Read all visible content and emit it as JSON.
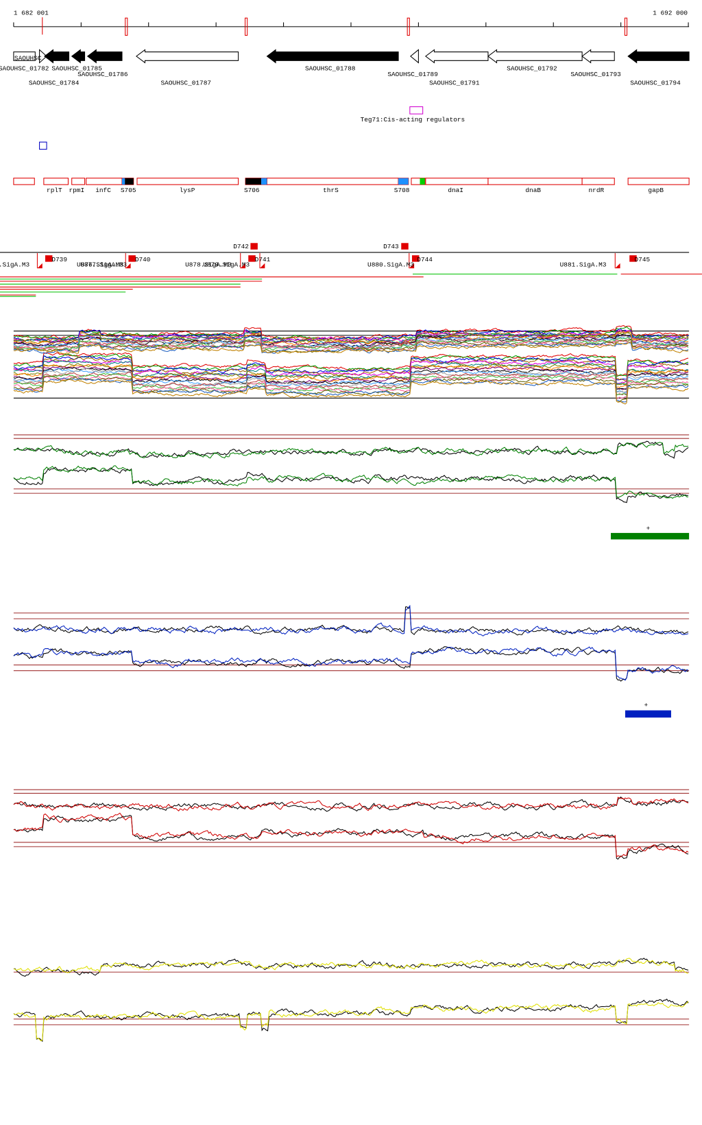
{
  "ruler": {
    "start": "1 682 001",
    "end": "1 692 000"
  },
  "genes": [
    "SAOUHSC",
    "SAOUHSC_01782",
    "SAOUHSC_01785",
    "SAOUHSC_01786",
    "SAOUHSC_01784",
    "SAOUHSC_01787",
    "SAOUHSC_01788",
    "SAOUHSC_01789",
    "SAOUHSC_01791",
    "SAOUHSC_01792",
    "SAOUHSC_01793",
    "SAOUHSC_01794"
  ],
  "annotation": "Teg71:Cis-acting regulators",
  "operons": [
    "rplT",
    "rpmI",
    "infC",
    "S705",
    "lysP",
    "S706",
    "thrS",
    "S708",
    "dnaI",
    "dnaB",
    "nrdR",
    "gapB"
  ],
  "features": [
    "D742",
    "D743",
    "D739",
    "D740",
    "D741",
    "D744",
    "D745"
  ],
  "promoters": [
    ".SigA.M3",
    "U876.SigA.M3",
    "U877.SigA.M3",
    "U878.SigA.M3",
    "U879.SigA.M3",
    "U880.SigA.M3",
    "U881.SigA.M3"
  ],
  "strand_labels": [
    "+",
    "+"
  ]
}
